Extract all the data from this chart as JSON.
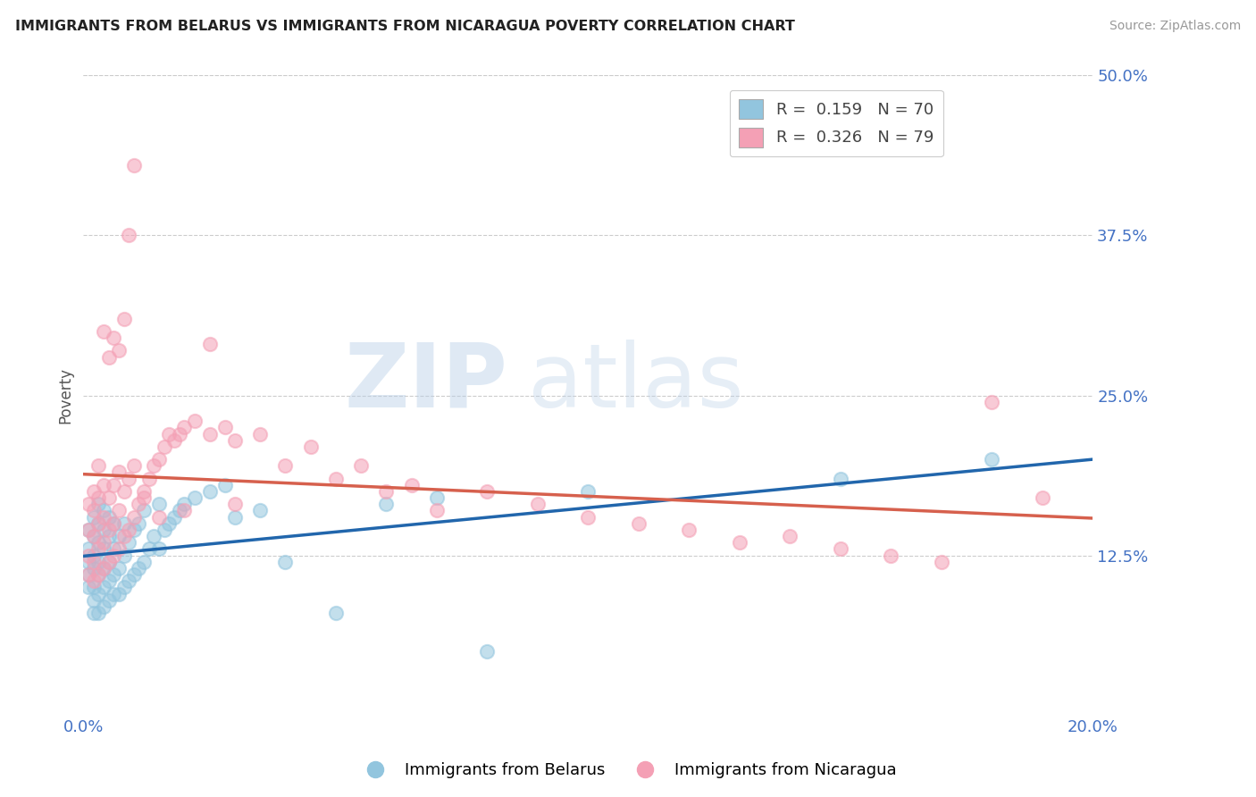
{
  "title": "IMMIGRANTS FROM BELARUS VS IMMIGRANTS FROM NICARAGUA POVERTY CORRELATION CHART",
  "source": "Source: ZipAtlas.com",
  "ylabel": "Poverty",
  "xlim": [
    0.0,
    0.2
  ],
  "ylim": [
    0.0,
    0.5
  ],
  "xtick_labels": [
    "0.0%",
    "20.0%"
  ],
  "xtick_positions": [
    0.0,
    0.2
  ],
  "ytick_labels": [
    "12.5%",
    "25.0%",
    "37.5%",
    "50.0%"
  ],
  "ytick_positions": [
    0.125,
    0.25,
    0.375,
    0.5
  ],
  "color_blue": "#92c5de",
  "color_pink": "#f4a0b5",
  "line_color_blue": "#2166ac",
  "line_color_pink": "#d6604d",
  "axis_color": "#4472c4",
  "watermark_zip": "ZIP",
  "watermark_atlas": "atlas",
  "belarus_x": [
    0.001,
    0.001,
    0.001,
    0.001,
    0.001,
    0.002,
    0.002,
    0.002,
    0.002,
    0.002,
    0.002,
    0.002,
    0.003,
    0.003,
    0.003,
    0.003,
    0.003,
    0.003,
    0.003,
    0.004,
    0.004,
    0.004,
    0.004,
    0.004,
    0.004,
    0.005,
    0.005,
    0.005,
    0.005,
    0.005,
    0.006,
    0.006,
    0.006,
    0.006,
    0.007,
    0.007,
    0.007,
    0.008,
    0.008,
    0.008,
    0.009,
    0.009,
    0.01,
    0.01,
    0.011,
    0.011,
    0.012,
    0.012,
    0.013,
    0.014,
    0.015,
    0.015,
    0.016,
    0.017,
    0.018,
    0.019,
    0.02,
    0.022,
    0.025,
    0.028,
    0.03,
    0.035,
    0.04,
    0.05,
    0.06,
    0.07,
    0.08,
    0.1,
    0.15,
    0.18
  ],
  "belarus_y": [
    0.1,
    0.11,
    0.12,
    0.13,
    0.145,
    0.08,
    0.09,
    0.1,
    0.115,
    0.125,
    0.14,
    0.155,
    0.08,
    0.095,
    0.11,
    0.12,
    0.135,
    0.15,
    0.165,
    0.085,
    0.1,
    0.115,
    0.13,
    0.145,
    0.16,
    0.09,
    0.105,
    0.12,
    0.14,
    0.155,
    0.095,
    0.11,
    0.13,
    0.15,
    0.095,
    0.115,
    0.14,
    0.1,
    0.125,
    0.15,
    0.105,
    0.135,
    0.11,
    0.145,
    0.115,
    0.15,
    0.12,
    0.16,
    0.13,
    0.14,
    0.13,
    0.165,
    0.145,
    0.15,
    0.155,
    0.16,
    0.165,
    0.17,
    0.175,
    0.18,
    0.155,
    0.16,
    0.12,
    0.08,
    0.165,
    0.17,
    0.05,
    0.175,
    0.185,
    0.2
  ],
  "nicaragua_x": [
    0.001,
    0.001,
    0.001,
    0.001,
    0.002,
    0.002,
    0.002,
    0.002,
    0.002,
    0.003,
    0.003,
    0.003,
    0.003,
    0.003,
    0.004,
    0.004,
    0.004,
    0.004,
    0.005,
    0.005,
    0.005,
    0.006,
    0.006,
    0.006,
    0.007,
    0.007,
    0.007,
    0.008,
    0.008,
    0.009,
    0.009,
    0.01,
    0.01,
    0.011,
    0.012,
    0.013,
    0.014,
    0.015,
    0.016,
    0.017,
    0.018,
    0.019,
    0.02,
    0.022,
    0.025,
    0.028,
    0.03,
    0.035,
    0.04,
    0.045,
    0.05,
    0.055,
    0.06,
    0.065,
    0.07,
    0.08,
    0.09,
    0.1,
    0.11,
    0.12,
    0.13,
    0.14,
    0.15,
    0.16,
    0.17,
    0.18,
    0.004,
    0.005,
    0.006,
    0.007,
    0.008,
    0.009,
    0.01,
    0.012,
    0.015,
    0.02,
    0.025,
    0.03,
    0.19
  ],
  "nicaragua_y": [
    0.11,
    0.125,
    0.145,
    0.165,
    0.105,
    0.12,
    0.14,
    0.16,
    0.175,
    0.11,
    0.13,
    0.15,
    0.17,
    0.195,
    0.115,
    0.135,
    0.155,
    0.18,
    0.12,
    0.145,
    0.17,
    0.125,
    0.15,
    0.18,
    0.13,
    0.16,
    0.19,
    0.14,
    0.175,
    0.145,
    0.185,
    0.155,
    0.195,
    0.165,
    0.175,
    0.185,
    0.195,
    0.2,
    0.21,
    0.22,
    0.215,
    0.22,
    0.225,
    0.23,
    0.22,
    0.225,
    0.215,
    0.22,
    0.195,
    0.21,
    0.185,
    0.195,
    0.175,
    0.18,
    0.16,
    0.175,
    0.165,
    0.155,
    0.15,
    0.145,
    0.135,
    0.14,
    0.13,
    0.125,
    0.12,
    0.245,
    0.3,
    0.28,
    0.295,
    0.285,
    0.31,
    0.375,
    0.43,
    0.17,
    0.155,
    0.16,
    0.29,
    0.165,
    0.17
  ]
}
